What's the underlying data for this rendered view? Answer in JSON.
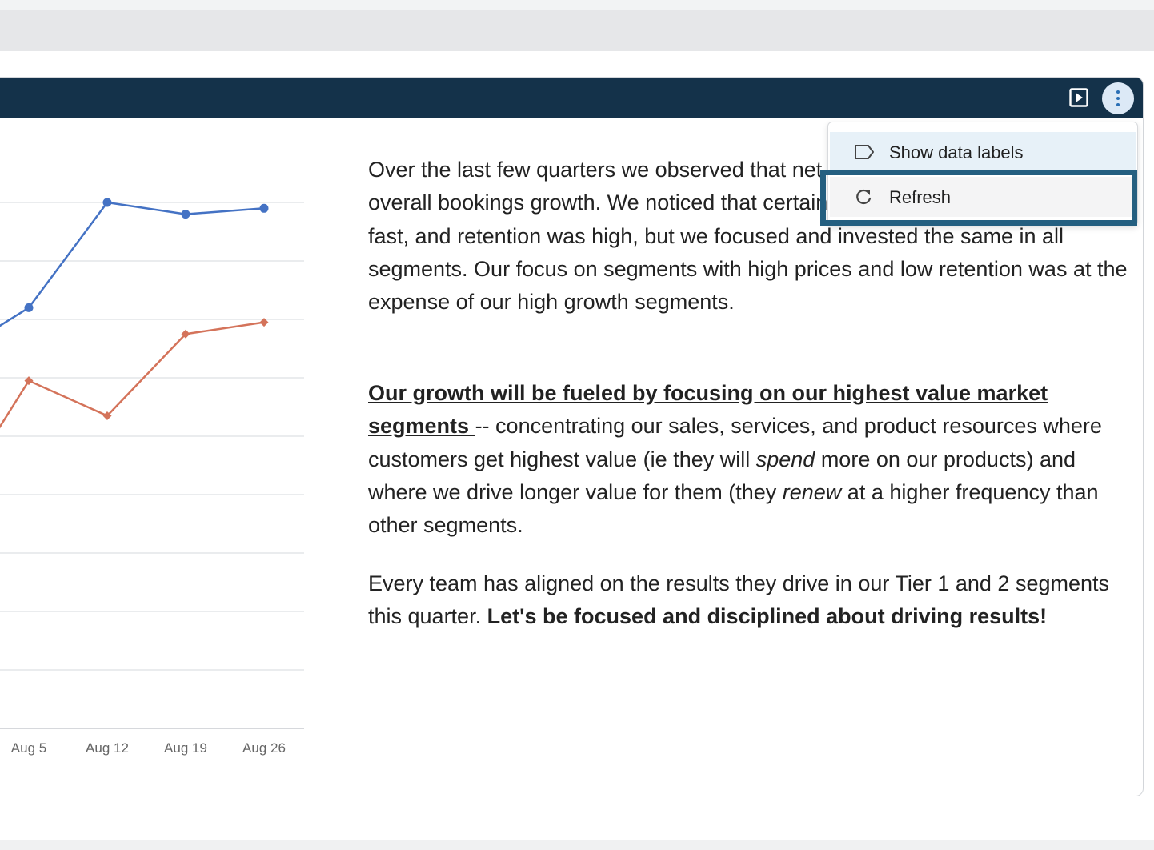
{
  "colors": {
    "header_bg": "#14324a",
    "series_blue": "#4472c4",
    "series_orange": "#d4735a",
    "focus_ring": "#245f80"
  },
  "toolbar": {
    "present_icon": "present-icon",
    "more_icon": "more-vertical-icon"
  },
  "menu": {
    "items": [
      {
        "label": "Show data labels",
        "icon": "tag-icon"
      },
      {
        "label": "Refresh",
        "icon": "refresh-icon"
      }
    ]
  },
  "chart_data": {
    "type": "line",
    "categories": [
      "Aug 5",
      "Aug 12",
      "Aug 19",
      "Aug 26"
    ],
    "series": [
      {
        "color": "#4472c4",
        "marker": "circle",
        "values": [
          7.2,
          9.0,
          8.8,
          8.9
        ]
      },
      {
        "color": "#d4735a",
        "marker": "diamond",
        "values": [
          5.95,
          5.35,
          6.75,
          6.95
        ]
      }
    ],
    "ylim": [
      0,
      10
    ],
    "grid": true
  },
  "article": {
    "p1": "Over the last few quarters we observed that net retention was declining, despite overall bookings growth. We noticed that certain segments were growing quite fast, and retention was high, but we focused and invested the same in all segments. Our focus on segments with high prices and low retention was at the expense of our high growth segments.",
    "p2_head": "Our growth will be fueled by focusing on our highest value market segments ",
    "p2_a": "-- concentrating our sales, services, and product resources where customers get highest value (ie they will ",
    "p2_spend": "spend",
    "p2_b": " more on our products) and where we drive longer value for them (they ",
    "p2_renew": "renew",
    "p2_c": " at a higher frequency than other segments.",
    "p3_a": "Every team has aligned on the results they drive in our Tier 1 and 2 segments this quarter. ",
    "p3_bold": "Let's be focused and disciplined about driving results!"
  }
}
